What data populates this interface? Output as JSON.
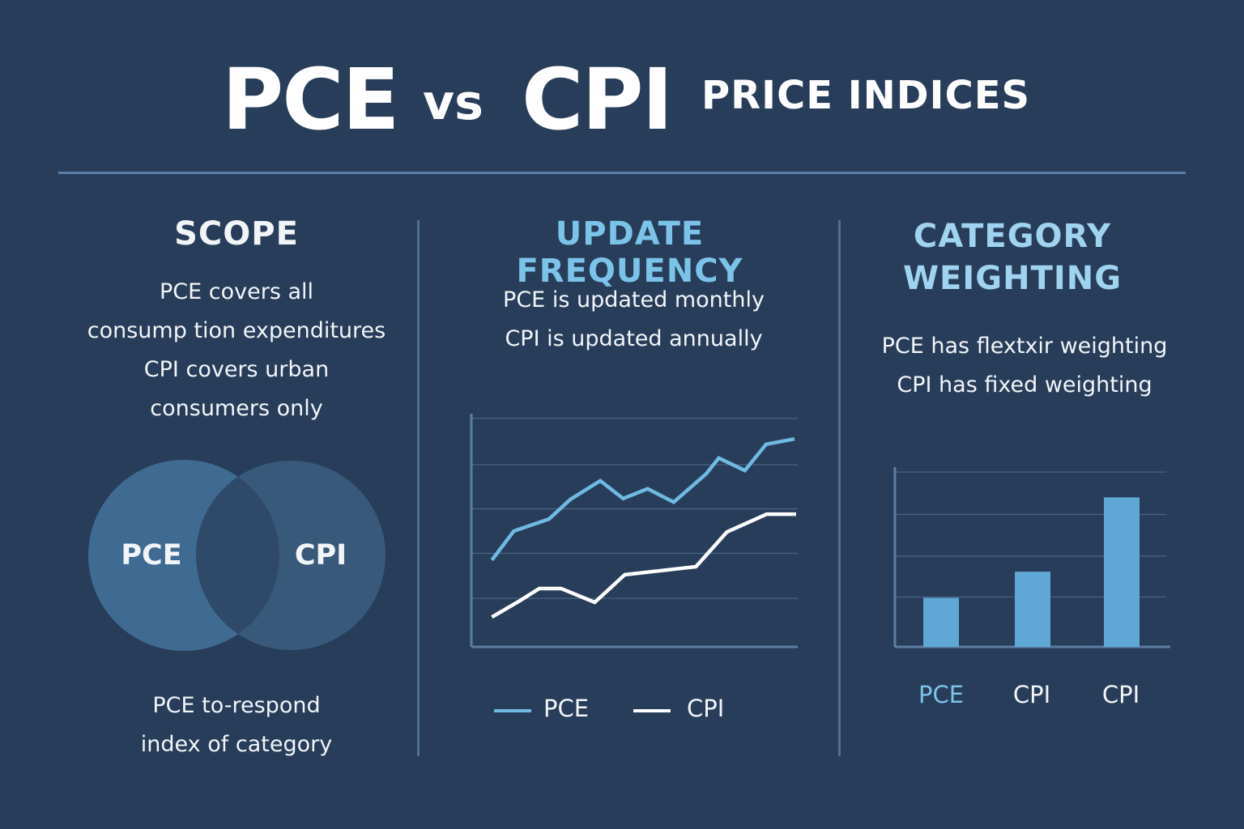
{
  "title": {
    "left": "PCE",
    "vs": "vs",
    "right": "CPI",
    "subtitle": "PRICE INDICES"
  },
  "colors": {
    "background": "#273d59",
    "accent": "#7cc3ea",
    "pce_line": "#6fb9e3",
    "cpi_line": "#ffffff",
    "bar": "#5fa8d6",
    "venn_pce": "#3f6b92",
    "venn_cpi": "#38597a",
    "venn_overlap": "#2f4a68"
  },
  "scope": {
    "heading": "SCOPE",
    "lines": [
      "PCE covers all",
      "consump tion expenditures",
      "CPI covers urban",
      "consumers only"
    ],
    "venn": {
      "left_label": "PCE",
      "right_label": "CPI"
    },
    "footer_lines": [
      "PCE to-respond",
      "index of category"
    ]
  },
  "update_frequency": {
    "heading": "UPDATE FREQUENCY",
    "lines": [
      "PCE is updated monthly",
      "CPI is updated annually"
    ],
    "legend": [
      {
        "label": "PCE"
      },
      {
        "label": "CPI"
      }
    ]
  },
  "category_weighting": {
    "heading_lines": [
      "CATEGORY",
      "WEIGHTING"
    ],
    "lines": [
      "PCE has flextxir weighting",
      "CPI has fixed weighting"
    ]
  },
  "chart_data": [
    {
      "type": "line",
      "title": "",
      "xlabel": "",
      "ylabel": "",
      "xlim": [
        0,
        10
      ],
      "ylim": [
        0,
        5.2
      ],
      "grid": true,
      "legend": "bottom",
      "series": [
        {
          "name": "PCE",
          "x": [
            0.63,
            1.3,
            2.38,
            3.03,
            3.95,
            4.65,
            5.4,
            6.2,
            7.2,
            7.58,
            8.38,
            9.03,
            9.9
          ],
          "y": [
            1.95,
            2.6,
            2.87,
            3.31,
            3.73,
            3.33,
            3.55,
            3.25,
            3.89,
            4.24,
            3.96,
            4.55,
            4.67
          ]
        },
        {
          "name": "CPI",
          "x": [
            0.63,
            1.45,
            2.08,
            2.75,
            3.78,
            4.7,
            6.88,
            7.83,
            9.05,
            9.95
          ],
          "y": [
            0.67,
            1.02,
            1.31,
            1.31,
            1.0,
            1.62,
            1.8,
            2.58,
            2.98,
            2.98
          ]
        }
      ]
    },
    {
      "type": "bar",
      "title": "",
      "xlabel": "",
      "ylabel": "",
      "categories": [
        "PCE",
        "CPI",
        "CPI"
      ],
      "values": [
        1.2,
        1.84,
        3.66
      ],
      "ylim": [
        0,
        4.4
      ],
      "grid": true
    }
  ]
}
